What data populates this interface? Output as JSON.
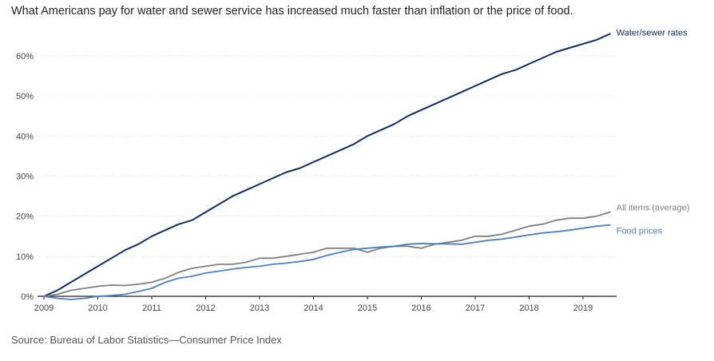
{
  "title": "What Americans pay for water and sewer service has increased much faster than inflation or the price of food.",
  "source": "Source: Bureau of Labor Statistics—Consumer Price Index",
  "chart_data": {
    "type": "line",
    "title": "What Americans pay for water and sewer service has increased much faster than inflation or the price of food.",
    "xlabel": "",
    "ylabel": "",
    "xlim": [
      2009,
      2019.6
    ],
    "ylim": [
      0,
      65
    ],
    "grid": true,
    "x_ticks": [
      "2009",
      "2010",
      "2011",
      "2012",
      "2013",
      "2014",
      "2015",
      "2016",
      "2017",
      "2018",
      "2019"
    ],
    "y_ticks": [
      "0%",
      "10%",
      "20%",
      "30%",
      "40%",
      "50%",
      "60%"
    ],
    "legend": "labels at line ends (right)",
    "series": [
      {
        "name": "Water/sewer rates",
        "color": "#0d2e61",
        "x": [
          2009.0,
          2009.25,
          2009.5,
          2009.75,
          2010.0,
          2010.25,
          2010.5,
          2010.75,
          2011.0,
          2011.25,
          2011.5,
          2011.75,
          2012.0,
          2012.25,
          2012.5,
          2012.75,
          2013.0,
          2013.25,
          2013.5,
          2013.75,
          2014.0,
          2014.25,
          2014.5,
          2014.75,
          2015.0,
          2015.25,
          2015.5,
          2015.75,
          2016.0,
          2016.25,
          2016.5,
          2016.75,
          2017.0,
          2017.25,
          2017.5,
          2017.75,
          2018.0,
          2018.25,
          2018.5,
          2018.75,
          2019.0,
          2019.25,
          2019.5
        ],
        "values": [
          0,
          1.5,
          3.5,
          5.5,
          7.5,
          9.5,
          11.5,
          13,
          15,
          16.5,
          18,
          19,
          21,
          23,
          25,
          26.5,
          28,
          29.5,
          31,
          32,
          33.5,
          35,
          36.5,
          38,
          40,
          41.5,
          43,
          45,
          46.5,
          48,
          49.5,
          51,
          52.5,
          54,
          55.5,
          56.5,
          58,
          59.5,
          61,
          62,
          63,
          64,
          65.5
        ]
      },
      {
        "name": "All items (average)",
        "color": "#808080",
        "x": [
          2009.0,
          2009.25,
          2009.5,
          2009.75,
          2010.0,
          2010.25,
          2010.5,
          2010.75,
          2011.0,
          2011.25,
          2011.5,
          2011.75,
          2012.0,
          2012.25,
          2012.5,
          2012.75,
          2013.0,
          2013.25,
          2013.5,
          2013.75,
          2014.0,
          2014.25,
          2014.5,
          2014.75,
          2015.0,
          2015.25,
          2015.5,
          2015.75,
          2016.0,
          2016.25,
          2016.5,
          2016.75,
          2017.0,
          2017.25,
          2017.5,
          2017.75,
          2018.0,
          2018.25,
          2018.5,
          2018.75,
          2019.0,
          2019.25,
          2019.5
        ],
        "values": [
          0,
          0.5,
          1.5,
          2,
          2.5,
          2.8,
          2.7,
          3,
          3.5,
          4.5,
          6,
          7,
          7.5,
          8,
          8,
          8.5,
          9.5,
          9.5,
          10,
          10.5,
          11,
          12,
          12,
          12,
          11,
          12,
          12.5,
          12.5,
          12,
          13,
          13.5,
          14,
          15,
          15,
          15.5,
          16.5,
          17.5,
          18,
          19,
          19.5,
          19.5,
          20,
          21
        ]
      },
      {
        "name": "Food prices",
        "color": "#4b7fc4",
        "x": [
          2009.0,
          2009.25,
          2009.5,
          2009.75,
          2010.0,
          2010.25,
          2010.5,
          2010.75,
          2011.0,
          2011.25,
          2011.5,
          2011.75,
          2012.0,
          2012.25,
          2012.5,
          2012.75,
          2013.0,
          2013.25,
          2013.5,
          2013.75,
          2014.0,
          2014.25,
          2014.5,
          2014.75,
          2015.0,
          2015.25,
          2015.5,
          2015.75,
          2016.0,
          2016.25,
          2016.5,
          2016.75,
          2017.0,
          2017.25,
          2017.5,
          2017.75,
          2018.0,
          2018.25,
          2018.5,
          2018.75,
          2019.0,
          2019.25,
          2019.5
        ],
        "values": [
          0,
          -0.5,
          -0.8,
          -0.5,
          0,
          0.2,
          0.5,
          1.2,
          2,
          3.5,
          4.5,
          5,
          5.8,
          6.3,
          6.8,
          7.2,
          7.5,
          8,
          8.3,
          8.7,
          9.2,
          10.2,
          11,
          11.7,
          12,
          12.3,
          12.5,
          13,
          13.2,
          13.1,
          13.1,
          13,
          13.5,
          14,
          14.3,
          14.8,
          15.3,
          15.8,
          16.1,
          16.5,
          17,
          17.5,
          17.8
        ]
      }
    ]
  }
}
